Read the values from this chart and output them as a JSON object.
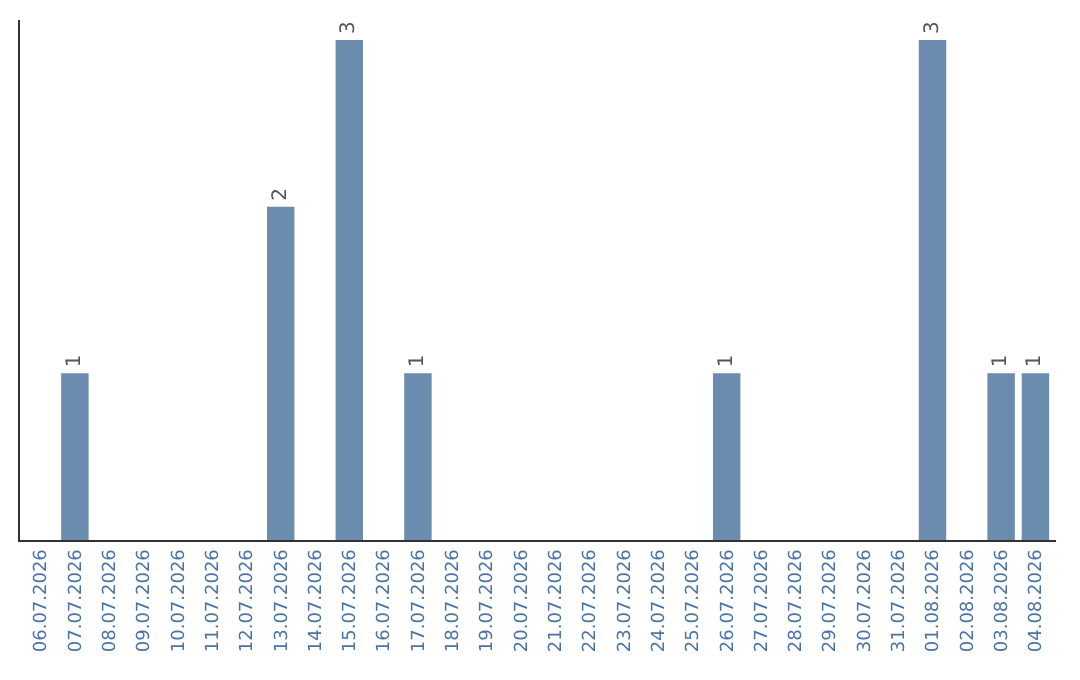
{
  "chart_data": {
    "type": "bar",
    "categories": [
      "06.07.2026",
      "07.07.2026",
      "08.07.2026",
      "09.07.2026",
      "10.07.2026",
      "11.07.2026",
      "12.07.2026",
      "13.07.2026",
      "14.07.2026",
      "15.07.2026",
      "16.07.2026",
      "17.07.2026",
      "18.07.2026",
      "19.07.2026",
      "20.07.2026",
      "21.07.2026",
      "22.07.2026",
      "23.07.2026",
      "24.07.2026",
      "25.07.2026",
      "26.07.2026",
      "27.07.2026",
      "28.07.2026",
      "29.07.2026",
      "30.07.2026",
      "31.07.2026",
      "01.08.2026",
      "02.08.2026",
      "03.08.2026",
      "04.08.2026"
    ],
    "values": [
      0,
      1,
      0,
      0,
      0,
      0,
      0,
      2,
      0,
      3,
      0,
      1,
      0,
      0,
      0,
      0,
      0,
      0,
      0,
      0,
      1,
      0,
      0,
      0,
      0,
      0,
      3,
      0,
      1,
      1
    ],
    "value_labels": [
      null,
      "1",
      null,
      null,
      null,
      null,
      null,
      "2",
      null,
      "3",
      null,
      "1",
      null,
      null,
      null,
      null,
      null,
      null,
      null,
      null,
      "1",
      null,
      null,
      null,
      null,
      null,
      "3",
      null,
      "1",
      "1"
    ],
    "color": "#6b8cae"
  }
}
